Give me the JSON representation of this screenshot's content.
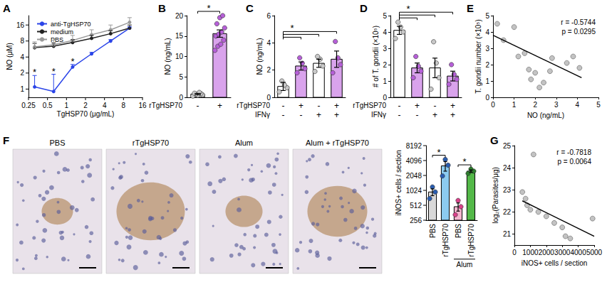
{
  "chart_data": [
    {
      "title": "A",
      "type": "line",
      "log": true,
      "x_label": "TgHSP70 (μg/mL)",
      "y_label": "NO (μM)",
      "x": [
        0.3125,
        0.625,
        1.25,
        2.5,
        5,
        10
      ],
      "xlim": [
        0.25,
        16
      ],
      "xticks": [
        0.25,
        0.5,
        1,
        2,
        4,
        8,
        16
      ],
      "ylim": [
        0.7,
        24
      ],
      "yticks": [
        1,
        2,
        4,
        8,
        16
      ],
      "legend": "top-left",
      "series": [
        {
          "name": "anti-TgHSP70",
          "color": "#2b45e8",
          "marker": "circle",
          "values": [
            1.1,
            0.9,
            2.6,
            4.6,
            8,
            14
          ],
          "errors": [
            0.7,
            1.0,
            0.3,
            0.3,
            0.5,
            0.8
          ],
          "significance": [
            "*",
            "*",
            "*",
            null,
            null,
            null
          ]
        },
        {
          "name": "medium",
          "color": "#222222",
          "marker": "circle",
          "values": [
            6,
            6.4,
            7.5,
            9,
            11,
            14
          ],
          "errors": [
            1.2,
            1.0,
            1.0,
            1.2,
            1.5,
            2
          ]
        },
        {
          "name": "PBS",
          "color": "#9a9a9a",
          "marker": "circle",
          "values": [
            6.2,
            6.8,
            8.2,
            10.5,
            13,
            18
          ],
          "errors": [
            1.5,
            1.5,
            2,
            2.5,
            3,
            4
          ]
        }
      ]
    },
    {
      "title": "B",
      "type": "bar",
      "y_label": "NO (ng/mL)",
      "x_rows": [
        {
          "label": "rTgHSP70",
          "values": [
            "-",
            "+"
          ]
        }
      ],
      "values": [
        0.8,
        15.6
      ],
      "errors": [
        0.15,
        0.9
      ],
      "points": [
        [
          0.3,
          0.5,
          0.6,
          0.8,
          0.9,
          1.0,
          1.2
        ],
        [
          11.5,
          12.5,
          13,
          14,
          15,
          15.5,
          16,
          17,
          18,
          19.5,
          20
        ]
      ],
      "colors": [
        "#ffffff",
        "#d9a3ec"
      ],
      "point_colors": [
        "#c8c8c8",
        "#b65fd8"
      ],
      "ylim": [
        0,
        20
      ],
      "yticks": [
        0,
        5,
        10,
        15,
        20
      ],
      "comparisons": [
        {
          "from": 0,
          "to": [
            1
          ],
          "label": "*"
        }
      ]
    },
    {
      "title": "C",
      "type": "bar",
      "y_label": "NO (ng/mL)",
      "x_rows": [
        {
          "label": "rTgHSP70",
          "values": [
            "-",
            "+",
            "-",
            "+"
          ]
        },
        {
          "label": "IFNγ",
          "values": [
            "-",
            "-",
            "+",
            "+"
          ]
        }
      ],
      "values": [
        0.8,
        2.3,
        2.5,
        2.8
      ],
      "errors": [
        0.3,
        0.3,
        0.3,
        0.6
      ],
      "points": [
        [
          0.4,
          0.7,
          0.9,
          1.2
        ],
        [
          1.8,
          2.1,
          2.5,
          2.9
        ],
        [
          1.9,
          2.3,
          2.8,
          3.0
        ],
        [
          1.8,
          2.4,
          2.9,
          4.1
        ]
      ],
      "colors": [
        "#ffffff",
        "#d9a3ec",
        "#ffffff",
        "#d9a3ec"
      ],
      "point_colors": [
        "#c8c8c8",
        "#b65fd8",
        "#c8c8c8",
        "#b65fd8"
      ],
      "ylim": [
        0,
        6
      ],
      "yticks": [
        0,
        2,
        4,
        6
      ],
      "comparisons": [
        {
          "from": 0,
          "to": [
            1,
            2,
            3
          ],
          "label": "*"
        }
      ]
    },
    {
      "title": "D",
      "type": "bar",
      "y_label": "# of T. gondii (×10⁵)",
      "x_rows": [
        {
          "label": "rTgHSP70",
          "values": [
            "-",
            "+",
            "-",
            "+"
          ]
        },
        {
          "label": "IFNγ",
          "values": [
            "-",
            "-",
            "+",
            "+"
          ]
        }
      ],
      "values": [
        4.1,
        1.8,
        1.8,
        1.3
      ],
      "errors": [
        0.25,
        0.3,
        0.6,
        0.3
      ],
      "points": [
        [
          3.6,
          4.0,
          4.3,
          4.6
        ],
        [
          1.2,
          1.6,
          1.9,
          2.5
        ],
        [
          0.5,
          1.2,
          2.1,
          3.4
        ],
        [
          0.8,
          1.1,
          1.4,
          2.0
        ]
      ],
      "colors": [
        "#ffffff",
        "#d9a3ec",
        "#ffffff",
        "#d9a3ec"
      ],
      "point_colors": [
        "#c8c8c8",
        "#b65fd8",
        "#c8c8c8",
        "#b65fd8"
      ],
      "ylim": [
        0,
        5
      ],
      "yticks": [
        0,
        1,
        2,
        3,
        4,
        5
      ],
      "comparisons": [
        {
          "from": 0,
          "to": [
            1,
            2,
            3
          ],
          "label": "*"
        }
      ]
    },
    {
      "title": "E",
      "type": "scatter",
      "x_label": "NO (ng/mL)",
      "y_label": "T. gondii number (×10⁵)",
      "x": [
        0.2,
        0.5,
        1.0,
        1.2,
        1.5,
        1.7,
        1.8,
        2.0,
        2.2,
        2.4,
        2.7,
        2.8,
        3.5,
        3.8,
        4.1
      ],
      "values": [
        4.5,
        3.5,
        4.3,
        2.5,
        2.7,
        1.7,
        1.1,
        1.5,
        0.6,
        0.9,
        1.6,
        2.4,
        2.1,
        2.5,
        1.8
      ],
      "color": "#b4b4b4",
      "marker": "circle",
      "fit": {
        "x": [
          0,
          4.2
        ],
        "values": [
          3.8,
          1.2
        ],
        "color": "#000000"
      },
      "xlim": [
        0,
        5
      ],
      "xticks": [
        0,
        1,
        2,
        3,
        4,
        5
      ],
      "ylim": [
        0,
        5
      ],
      "yticks": [
        0,
        1,
        2,
        3,
        4,
        5
      ],
      "annotations": [
        "r = -0.5744",
        "p = 0.0295"
      ]
    },
    {
      "title": "F",
      "type": "bar",
      "log": "y",
      "y_label": "iNOS+ cells / section",
      "images": [
        "PBS",
        "rTgHSP70",
        "Alum",
        "Alum + rTgHSP70"
      ],
      "categories": [
        "PBS",
        "rTgHSP70",
        "PBS",
        "rTgHSP70"
      ],
      "group_labels": [
        {
          "label": "Alum",
          "from": 2,
          "to": 3
        }
      ],
      "values": [
        950,
        3200,
        480,
        2500
      ],
      "errors": [
        150,
        700,
        90,
        150
      ],
      "points": [
        [
          700,
          950,
          1200
        ],
        [
          2000,
          3300,
          4300
        ],
        [
          330,
          480,
          640
        ],
        [
          2250,
          2500,
          2750
        ]
      ],
      "colors": [
        "#d9d9d9",
        "#8ccbf0",
        "#f4b6cf",
        "#53b848"
      ],
      "point_colors": [
        "#2a5db0",
        "#2a5db0",
        "#d9418a",
        "#2e7d2e"
      ],
      "ylim": [
        256,
        8192
      ],
      "yticks": [
        256,
        512,
        1024,
        2048,
        4096,
        8192
      ],
      "comparisons": [
        {
          "from": 0,
          "to": [
            1
          ],
          "label": "*"
        },
        {
          "from": 2,
          "to": [
            3
          ],
          "label": "*"
        }
      ]
    },
    {
      "title": "G",
      "type": "scatter",
      "x_label": "iNOS+ cells / section",
      "y_label": "log₂(Parasites/μg)",
      "x": [
        500,
        700,
        800,
        1000,
        1200,
        1500,
        2000,
        2500,
        3000,
        3200,
        3500,
        4900
      ],
      "values": [
        22.9,
        22.6,
        22.3,
        22.1,
        24.6,
        22.0,
        21.8,
        21.5,
        21.3,
        20.9,
        20.8,
        21.7
      ],
      "color": "#b4b4b4",
      "marker": "circle",
      "fit": {
        "x": [
          500,
          5000
        ],
        "values": [
          22.5,
          20.9
        ],
        "color": "#000000"
      },
      "xlim": [
        0,
        5000
      ],
      "xticks": [
        0,
        1000,
        2000,
        3000,
        4000,
        5000
      ],
      "ylim": [
        20.5,
        25
      ],
      "yticks": [
        21,
        22,
        23,
        24,
        25
      ],
      "annotations": [
        "r = -0.7818",
        "p = 0.0064"
      ]
    }
  ]
}
